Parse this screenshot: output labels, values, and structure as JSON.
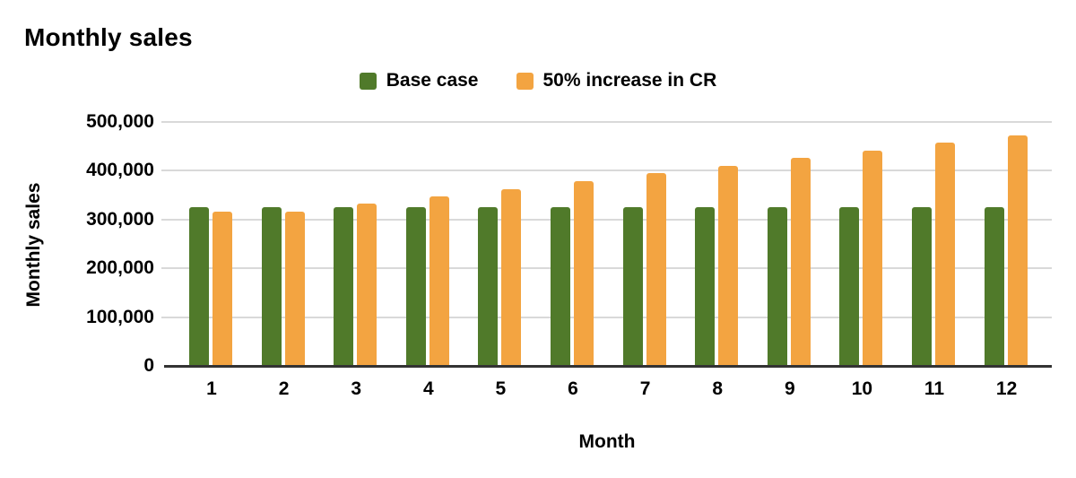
{
  "title": "Monthly sales",
  "chart_data": {
    "type": "bar",
    "title": "Monthly sales",
    "categories": [
      "1",
      "2",
      "3",
      "4",
      "5",
      "6",
      "7",
      "8",
      "9",
      "10",
      "11",
      "12"
    ],
    "series": [
      {
        "name": "Base case",
        "color": "#507A2A",
        "values": [
          325000,
          325000,
          325000,
          325000,
          325000,
          325000,
          325000,
          325000,
          325000,
          325000,
          325000,
          325000
        ]
      },
      {
        "name": "50% increase in CR",
        "color": "#F3A441",
        "values": [
          316000,
          316000,
          332000,
          347000,
          363000,
          379000,
          395000,
          410000,
          426000,
          442000,
          457000,
          473000
        ]
      }
    ],
    "xlabel": "Month",
    "ylabel": "Monthly sales",
    "ylim": [
      0,
      500000
    ],
    "ytick_step": 100000,
    "ytick_labels": [
      "0",
      "100,000",
      "200,000",
      "300,000",
      "400,000",
      "500,000"
    ],
    "grid": true,
    "legend_position": "top"
  },
  "colors": {
    "background": "#FFFFFF",
    "grid": "#D9D9D9",
    "axis_line": "#333333",
    "text": "#000000"
  }
}
